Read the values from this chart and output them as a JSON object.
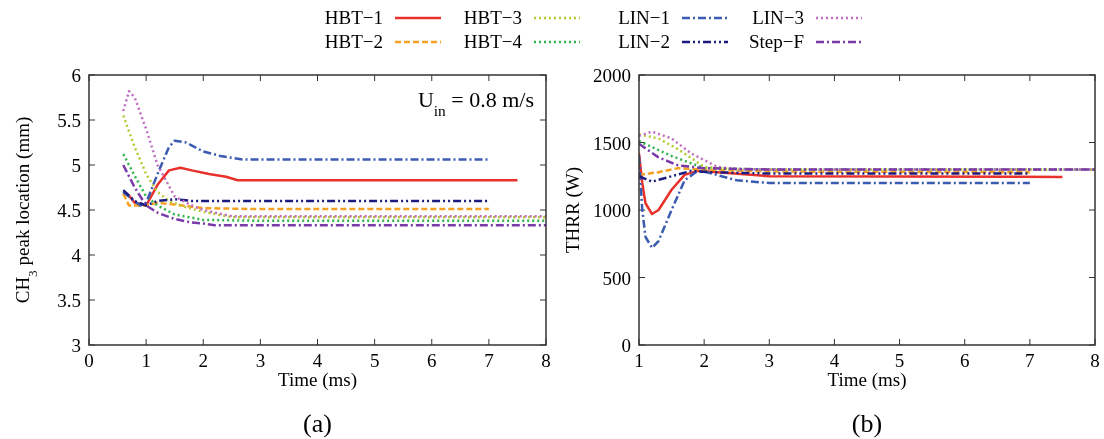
{
  "chart_data": [
    {
      "type": "line",
      "xlabel": "Time (ms)",
      "ylabel": "CH$_{3}$ peak location (mm)",
      "xlim": [
        0,
        8
      ],
      "xticks": [
        0,
        1,
        2,
        3,
        4,
        5,
        6,
        7,
        8
      ],
      "ylim": [
        3,
        6
      ],
      "yticks": [
        3,
        3.5,
        4,
        4.5,
        5,
        5.5,
        6
      ],
      "grid": false,
      "legend": "top",
      "marker": "none",
      "annotations": [
        "U$_{in}$ = 0.8 m/s",
        "(a)"
      ],
      "series": [
        {
          "name": "HBT−1",
          "color": "#e8312a",
          "line_style": "solid",
          "x": [
            0.6,
            0.7,
            0.8,
            1.0,
            1.2,
            1.4,
            1.6,
            1.8,
            2.1,
            2.4,
            2.6,
            4,
            7.5
          ],
          "values": [
            4.7,
            4.66,
            4.58,
            4.55,
            4.78,
            4.94,
            4.97,
            4.94,
            4.9,
            4.87,
            4.83,
            4.83,
            4.83
          ]
        },
        {
          "name": "HBT−2",
          "color": "#f5a020",
          "line_style": "dashed",
          "x": [
            0.6,
            0.7,
            1.0,
            1.2,
            1.5,
            2.0,
            3,
            7
          ],
          "values": [
            4.68,
            4.55,
            4.55,
            4.58,
            4.56,
            4.52,
            4.51,
            4.51
          ]
        },
        {
          "name": "HBT−3",
          "color": "#b5c832",
          "line_style": "dotted",
          "x": [
            0.6,
            0.8,
            1.0,
            1.2,
            1.4,
            1.7,
            2.0,
            2.5,
            4,
            8
          ],
          "values": [
            5.55,
            5.2,
            4.9,
            4.7,
            4.6,
            4.53,
            4.48,
            4.42,
            4.42,
            4.42
          ]
        },
        {
          "name": "HBT−4",
          "color": "#2fb34a",
          "line_style": "dotted",
          "x": [
            0.6,
            0.8,
            1.0,
            1.2,
            1.5,
            2.0,
            3,
            8
          ],
          "values": [
            5.12,
            4.88,
            4.65,
            4.55,
            4.45,
            4.39,
            4.38,
            4.38
          ]
        },
        {
          "name": "LIN−1",
          "color": "#3a5bb0",
          "line_style": "dashdot",
          "x": [
            0.6,
            0.75,
            0.9,
            1.0,
            1.2,
            1.4,
            1.5,
            1.7,
            2.0,
            2.3,
            2.7,
            4,
            7
          ],
          "values": [
            4.7,
            4.62,
            4.55,
            4.58,
            4.9,
            5.2,
            5.27,
            5.25,
            5.15,
            5.1,
            5.06,
            5.06,
            5.06
          ]
        },
        {
          "name": "LIN−2",
          "color": "#1c1c80",
          "line_style": "dashdotdot",
          "x": [
            0.6,
            0.8,
            1.0,
            1.2,
            1.5,
            1.8,
            3,
            7
          ],
          "values": [
            4.72,
            4.6,
            4.55,
            4.6,
            4.62,
            4.6,
            4.6,
            4.6
          ]
        },
        {
          "name": "LIN−3",
          "color": "#c06cc0",
          "line_style": "dotted",
          "x": [
            0.6,
            0.7,
            0.8,
            1.0,
            1.2,
            1.5,
            1.8,
            2.0,
            2.5,
            4,
            8
          ],
          "values": [
            5.6,
            5.82,
            5.75,
            5.4,
            5.0,
            4.65,
            4.55,
            4.5,
            4.43,
            4.43,
            4.43
          ]
        },
        {
          "name": "Step−F",
          "color": "#7a3aa8",
          "line_style": "dashdot",
          "x": [
            0.6,
            0.8,
            1.0,
            1.2,
            1.5,
            1.8,
            2.0,
            2.2,
            4,
            8
          ],
          "values": [
            5.0,
            4.75,
            4.55,
            4.47,
            4.4,
            4.36,
            4.35,
            4.33,
            4.33,
            4.33
          ]
        }
      ]
    },
    {
      "type": "line",
      "xlabel": "Time (ms)",
      "ylabel": "THRR (W)",
      "xlim": [
        1,
        8
      ],
      "xticks": [
        1,
        2,
        3,
        4,
        5,
        6,
        7,
        8
      ],
      "ylim": [
        0,
        2000
      ],
      "yticks": [
        0,
        500,
        1000,
        1500,
        2000
      ],
      "grid": false,
      "marker": "none",
      "annotations": [
        "(b)"
      ],
      "series": [
        {
          "color": "#e8312a",
          "line_style": "solid",
          "x": [
            1.0,
            1.05,
            1.1,
            1.2,
            1.3,
            1.5,
            1.7,
            1.9,
            2.2,
            3,
            7.5
          ],
          "values": [
            1420,
            1200,
            1050,
            970,
            1000,
            1150,
            1260,
            1290,
            1280,
            1250,
            1245
          ]
        },
        {
          "color": "#f5a020",
          "line_style": "dashed",
          "x": [
            1.0,
            1.3,
            1.6,
            2.0,
            3,
            7
          ],
          "values": [
            1260,
            1280,
            1310,
            1300,
            1285,
            1280
          ]
        },
        {
          "color": "#b5c832",
          "line_style": "dotted",
          "x": [
            1.0,
            1.3,
            1.6,
            2.0,
            2.5,
            8
          ],
          "values": [
            1560,
            1530,
            1450,
            1320,
            1300,
            1300
          ]
        },
        {
          "color": "#2fb34a",
          "line_style": "dotted",
          "x": [
            1.0,
            1.5,
            2.0,
            3,
            8
          ],
          "values": [
            1510,
            1400,
            1310,
            1300,
            1300
          ]
        },
        {
          "color": "#3a5bb0",
          "line_style": "dashdot",
          "x": [
            1.0,
            1.05,
            1.1,
            1.2,
            1.3,
            1.5,
            1.7,
            1.9,
            2.0,
            2.5,
            3,
            7
          ],
          "values": [
            1400,
            1000,
            800,
            720,
            770,
            1000,
            1220,
            1290,
            1285,
            1220,
            1200,
            1200
          ]
        },
        {
          "color": "#1c1c80",
          "line_style": "dashdotdot",
          "x": [
            1.0,
            1.2,
            1.5,
            1.8,
            2.1,
            3,
            7
          ],
          "values": [
            1250,
            1210,
            1250,
            1290,
            1280,
            1270,
            1270
          ]
        },
        {
          "color": "#c06cc0",
          "line_style": "dotted",
          "x": [
            1.0,
            1.2,
            1.5,
            1.8,
            2.2,
            2.5,
            8
          ],
          "values": [
            1550,
            1580,
            1530,
            1420,
            1320,
            1300,
            1300
          ]
        },
        {
          "color": "#7a3aa8",
          "line_style": "dashdot",
          "x": [
            1.0,
            1.3,
            1.6,
            2.0,
            3,
            8
          ],
          "values": [
            1490,
            1390,
            1330,
            1310,
            1300,
            1300
          ]
        }
      ]
    }
  ]
}
